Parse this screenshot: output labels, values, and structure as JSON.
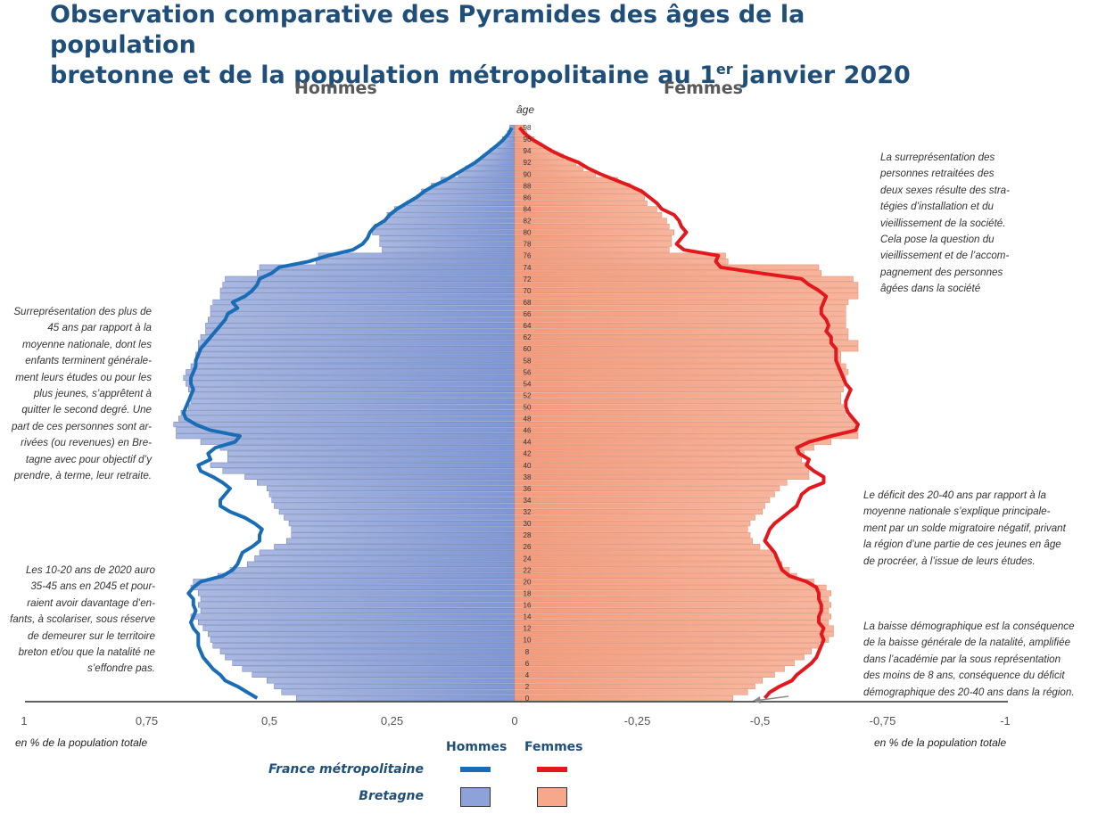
{
  "title": {
    "line1": "Observation comparative des Pyramides des âges de la population",
    "line2a": "bretonne et de la population métropolitaine au 1",
    "line2sup": "er",
    "line2b": " janvier 2020"
  },
  "labels": {
    "hommes": "Hommes",
    "femmes": "Femmes",
    "age": "âge",
    "unit_left": "en % de la population totale",
    "unit_right": "en % de la population totale"
  },
  "notes": {
    "left_top": [
      "Surreprésentation des plus de",
      "45 ans par rapport à la",
      "moyenne nationale, dont les",
      "enfants terminent générale-",
      "ment leurs études ou pour les",
      "plus jeunes, s’apprêtent à",
      "quitter le second degré. Une",
      "part de ces personnes sont ar-",
      "rivées (ou revenues) en Bre-",
      "tagne avec pour objectif d’y",
      "prendre, à terme, leur retraite."
    ],
    "left_bottom": [
      "Les 10-20 ans de 2020 auro",
      "35-45 ans en 2045 et pour-",
      "raient avoir davantage d’en-",
      "fants, à scolariser, sous réserve",
      "de demeurer sur le territoire",
      "breton et/ou que la natalité ne",
      "s’effondre pas."
    ],
    "right_top": [
      "La surreprésentation des",
      "personnes retraitées des",
      "deux sexes résulte des stra-",
      "tégies d’installation et du",
      "vieillissement de la société.",
      "Cela pose la question du",
      "vieillissement et de l’accom-",
      "pagnement des personnes",
      "âgées dans la société"
    ],
    "right_mid": [
      "Le déficit des 20-40 ans par rapport à la",
      "moyenne nationale s’explique principale-",
      "ment par un solde migratoire négatif, privant",
      "la région d’une partie de ces jeunes en âge",
      "de procréer, à l’issue de leurs études."
    ],
    "right_bottom": [
      "La baisse démographique est la conséquence",
      "de la baisse générale de la natalité, amplifiée",
      "dans l’académie par la sous représentation",
      "des moins de 8 ans, conséquence du déficit",
      "démographique des 20-40 ans dans la région."
    ]
  },
  "legend": {
    "hommes": "Hommes",
    "femmes": "Femmes",
    "france": "France métropolitaine",
    "bretagne": "Bretagne"
  },
  "colors": {
    "title": "#1f4e79",
    "bars_hommes": "#8da2d8",
    "bars_femmes": "#f7a88a",
    "line_hommes": "#1a6db5",
    "line_femmes": "#e3181e"
  },
  "chart_data": {
    "type": "population-pyramid",
    "title": "Observation comparative des Pyramides des âges de la population bretonne et de la population métropolitaine au 1er janvier 2020",
    "xlabel": "en % de la population totale",
    "ylabel": "âge",
    "x_ticks": [
      "1",
      "0,75",
      "0,5",
      "0,25",
      "0",
      "-0,25",
      "-0,5",
      "-0,75",
      "-1"
    ],
    "xlim": [
      -1,
      1
    ],
    "age_ticks": [
      0,
      2,
      4,
      6,
      8,
      10,
      12,
      14,
      16,
      18,
      20,
      22,
      24,
      26,
      28,
      30,
      32,
      34,
      36,
      38,
      40,
      42,
      44,
      46,
      48,
      50,
      52,
      54,
      56,
      58,
      60,
      62,
      64,
      66,
      68,
      70,
      72,
      74,
      76,
      78,
      80,
      82,
      84,
      86,
      88,
      90,
      92,
      94,
      96,
      98
    ],
    "ages": [
      0,
      1,
      2,
      3,
      4,
      5,
      6,
      7,
      8,
      9,
      10,
      11,
      12,
      13,
      14,
      15,
      16,
      17,
      18,
      19,
      20,
      21,
      22,
      23,
      24,
      25,
      26,
      27,
      28,
      29,
      30,
      31,
      32,
      33,
      34,
      35,
      36,
      37,
      38,
      39,
      40,
      41,
      42,
      43,
      44,
      45,
      46,
      47,
      48,
      49,
      50,
      51,
      52,
      53,
      54,
      55,
      56,
      57,
      58,
      59,
      60,
      61,
      62,
      63,
      64,
      65,
      66,
      67,
      68,
      69,
      70,
      71,
      72,
      73,
      74,
      75,
      76,
      77,
      78,
      79,
      80,
      81,
      82,
      83,
      84,
      85,
      86,
      87,
      88,
      89,
      90,
      91,
      92,
      93,
      94,
      95,
      96,
      97,
      98
    ],
    "series": [
      {
        "name": "Bretagne",
        "sex": "Hommes",
        "kind": "bars",
        "values": [
          0.445,
          0.475,
          0.49,
          0.505,
          0.535,
          0.555,
          0.575,
          0.59,
          0.6,
          0.615,
          0.62,
          0.625,
          0.635,
          0.645,
          0.66,
          0.64,
          0.645,
          0.64,
          0.645,
          0.66,
          0.655,
          0.605,
          0.58,
          0.545,
          0.53,
          0.52,
          0.49,
          0.465,
          0.455,
          0.455,
          0.46,
          0.47,
          0.48,
          0.49,
          0.495,
          0.5,
          0.505,
          0.525,
          0.55,
          0.595,
          0.62,
          0.585,
          0.585,
          0.6,
          0.64,
          0.69,
          0.69,
          0.695,
          0.685,
          0.68,
          0.665,
          0.66,
          0.66,
          0.665,
          0.67,
          0.675,
          0.67,
          0.66,
          0.65,
          0.65,
          0.645,
          0.645,
          0.64,
          0.63,
          0.63,
          0.625,
          0.62,
          0.62,
          0.615,
          0.6,
          0.6,
          0.595,
          0.59,
          0.525,
          0.52,
          0.405,
          0.4,
          0.27,
          0.275,
          0.275,
          0.29,
          0.285,
          0.265,
          0.26,
          0.245,
          0.22,
          0.2,
          0.19,
          0.17,
          0.15,
          0.115,
          0.1,
          0.08,
          0.065,
          0.05,
          0.035,
          0.025,
          0.015,
          0.01
        ]
      },
      {
        "name": "Bretagne",
        "sex": "Femmes",
        "kind": "bars",
        "values": [
          0.445,
          0.475,
          0.49,
          0.505,
          0.53,
          0.55,
          0.57,
          0.59,
          0.605,
          0.62,
          0.64,
          0.65,
          0.65,
          0.64,
          0.645,
          0.64,
          0.645,
          0.64,
          0.645,
          0.635,
          0.61,
          0.575,
          0.56,
          0.545,
          0.535,
          0.525,
          0.5,
          0.485,
          0.48,
          0.475,
          0.48,
          0.49,
          0.505,
          0.51,
          0.52,
          0.53,
          0.54,
          0.555,
          0.6,
          0.6,
          0.6,
          0.585,
          0.59,
          0.61,
          0.645,
          0.7,
          0.7,
          0.7,
          0.69,
          0.675,
          0.67,
          0.665,
          0.665,
          0.67,
          0.675,
          0.675,
          0.68,
          0.675,
          0.665,
          0.665,
          0.7,
          0.7,
          0.68,
          0.68,
          0.675,
          0.675,
          0.675,
          0.675,
          0.68,
          0.7,
          0.7,
          0.7,
          0.69,
          0.625,
          0.62,
          0.435,
          0.43,
          0.315,
          0.32,
          0.32,
          0.325,
          0.315,
          0.31,
          0.3,
          0.29,
          0.27,
          0.265,
          0.26,
          0.235,
          0.21,
          0.165,
          0.14,
          0.125,
          0.1,
          0.075,
          0.055,
          0.04,
          0.025,
          0.02
        ]
      },
      {
        "name": "France métropolitaine",
        "sex": "Hommes",
        "kind": "line",
        "values": [
          0.525,
          0.545,
          0.565,
          0.59,
          0.6,
          0.615,
          0.625,
          0.635,
          0.64,
          0.645,
          0.645,
          0.645,
          0.655,
          0.66,
          0.655,
          0.65,
          0.655,
          0.655,
          0.665,
          0.655,
          0.64,
          0.595,
          0.575,
          0.565,
          0.56,
          0.555,
          0.535,
          0.52,
          0.52,
          0.515,
          0.53,
          0.55,
          0.58,
          0.6,
          0.6,
          0.59,
          0.58,
          0.595,
          0.615,
          0.64,
          0.645,
          0.62,
          0.625,
          0.61,
          0.57,
          0.56,
          0.62,
          0.65,
          0.67,
          0.675,
          0.67,
          0.665,
          0.66,
          0.655,
          0.66,
          0.66,
          0.655,
          0.65,
          0.65,
          0.645,
          0.64,
          0.63,
          0.62,
          0.61,
          0.6,
          0.59,
          0.585,
          0.565,
          0.575,
          0.55,
          0.535,
          0.525,
          0.52,
          0.495,
          0.48,
          0.42,
          0.38,
          0.33,
          0.31,
          0.3,
          0.295,
          0.285,
          0.265,
          0.255,
          0.24,
          0.22,
          0.2,
          0.185,
          0.165,
          0.14,
          0.12,
          0.1,
          0.08,
          0.065,
          0.05,
          0.035,
          0.022,
          0.012,
          0.006
        ]
      },
      {
        "name": "France métropolitaine",
        "sex": "Femmes",
        "kind": "line",
        "values": [
          0.51,
          0.52,
          0.54,
          0.565,
          0.575,
          0.59,
          0.605,
          0.615,
          0.62,
          0.625,
          0.63,
          0.625,
          0.63,
          0.62,
          0.62,
          0.625,
          0.625,
          0.62,
          0.62,
          0.615,
          0.595,
          0.56,
          0.545,
          0.54,
          0.535,
          0.53,
          0.52,
          0.51,
          0.515,
          0.52,
          0.53,
          0.545,
          0.56,
          0.575,
          0.58,
          0.585,
          0.6,
          0.63,
          0.63,
          0.61,
          0.595,
          0.6,
          0.58,
          0.575,
          0.6,
          0.645,
          0.695,
          0.7,
          0.69,
          0.68,
          0.675,
          0.675,
          0.68,
          0.685,
          0.675,
          0.67,
          0.665,
          0.66,
          0.655,
          0.655,
          0.655,
          0.645,
          0.645,
          0.635,
          0.64,
          0.635,
          0.625,
          0.625,
          0.63,
          0.635,
          0.62,
          0.6,
          0.585,
          0.5,
          0.42,
          0.41,
          0.415,
          0.345,
          0.33,
          0.34,
          0.35,
          0.34,
          0.335,
          0.325,
          0.3,
          0.29,
          0.275,
          0.26,
          0.235,
          0.205,
          0.175,
          0.15,
          0.13,
          0.1,
          0.075,
          0.055,
          0.035,
          0.02,
          0.01
        ]
      }
    ],
    "grid": false,
    "legend": "bottom-center"
  }
}
